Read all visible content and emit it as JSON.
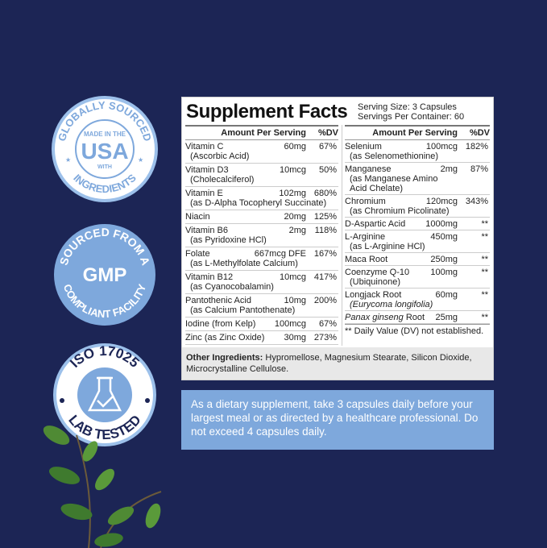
{
  "badges": [
    {
      "top": "GLOBALLY SOURCED",
      "center1": "MADE IN THE",
      "center2": "USA",
      "center3": "WITH",
      "bottom": "INGREDIENTS"
    },
    {
      "top": "SOURCED FROM A",
      "center": "GMP",
      "bottom": "COMPLIANT FACILITY"
    },
    {
      "top": "ISO 17025",
      "icon": "flask-check-icon",
      "bottom": "LAB TESTED"
    }
  ],
  "colors": {
    "background": "#1c2555",
    "accent": "#7ea8dc",
    "leaf": "#3f7a2e"
  },
  "label": {
    "title": "Supplement Facts",
    "serving_size": "Serving Size: 3 Capsules",
    "servings_per_container": "Servings Per Container: 60",
    "header_amount": "Amount Per Serving",
    "header_dv": "%DV",
    "left": [
      {
        "name": "Vitamin C",
        "sub": "(Ascorbic Acid)",
        "amount": "60mg",
        "dv": "67%"
      },
      {
        "name": "Vitamin D3",
        "sub": "(Cholecalciferol)",
        "amount": "10mcg",
        "dv": "50%"
      },
      {
        "name": "Vitamin E",
        "sub": "(as D-Alpha Tocopheryl Succinate)",
        "amount": "102mg",
        "dv": "680%"
      },
      {
        "name": "Niacin",
        "sub": "",
        "amount": "20mg",
        "dv": "125%"
      },
      {
        "name": "Vitamin B6",
        "sub": "(as Pyridoxine HCl)",
        "amount": "2mg",
        "dv": "118%"
      },
      {
        "name": "Folate",
        "sub": "(as L-Methylfolate Calcium)",
        "amount": "667mcg DFE",
        "dv": "167%"
      },
      {
        "name": "Vitamin B12",
        "sub": "(as Cyanocobalamin)",
        "amount": "10mcg",
        "dv": "417%"
      },
      {
        "name": "Pantothenic Acid",
        "sub": "(as Calcium Pantothenate)",
        "amount": "10mg",
        "dv": "200%"
      },
      {
        "name": "Iodine (from Kelp)",
        "sub": "",
        "amount": "100mcg",
        "dv": "67%"
      },
      {
        "name": "Zinc (as Zinc Oxide)",
        "sub": "",
        "amount": "30mg",
        "dv": "273%"
      }
    ],
    "right": [
      {
        "name": "Selenium",
        "sub": "(as Selenomethionine)",
        "amount": "100mcg",
        "dv": "182%"
      },
      {
        "name": "Manganese",
        "sub": "(as Manganese Amino Acid Chelate)",
        "amount": "2mg",
        "dv": "87%"
      },
      {
        "name": "Chromium",
        "sub": "(as Chromium Picolinate)",
        "amount": "120mcg",
        "dv": "343%"
      },
      {
        "name": "D-Aspartic Acid",
        "sub": "",
        "amount": "1000mg",
        "dv": "**"
      },
      {
        "name": "L-Arginine",
        "sub": "(as L-Arginine HCl)",
        "amount": "450mg",
        "dv": "**"
      },
      {
        "name": "Maca Root",
        "sub": "",
        "amount": "250mg",
        "dv": "**"
      },
      {
        "name": "Coenzyme Q-10",
        "sub": "(Ubiquinone)",
        "amount": "100mg",
        "dv": "**"
      },
      {
        "name": "Longjack Root",
        "sub": "(Eurycoma longifolia)",
        "amount": "60mg",
        "dv": "**"
      },
      {
        "name": "Panax ginseng Root",
        "sub": "",
        "amount": "25mg",
        "dv": "**"
      }
    ],
    "footnote": "** Daily Value (DV) not established.",
    "other_label": "Other Ingredients:",
    "other_text": " Hypromellose, Magnesium Stearate, Silicon Dioxide, Microcrystalline Cellulose."
  },
  "directions": "As a dietary supplement, take 3 capsules daily before your largest meal or as directed by a healthcare professional. Do not exceed 4 capsules daily."
}
